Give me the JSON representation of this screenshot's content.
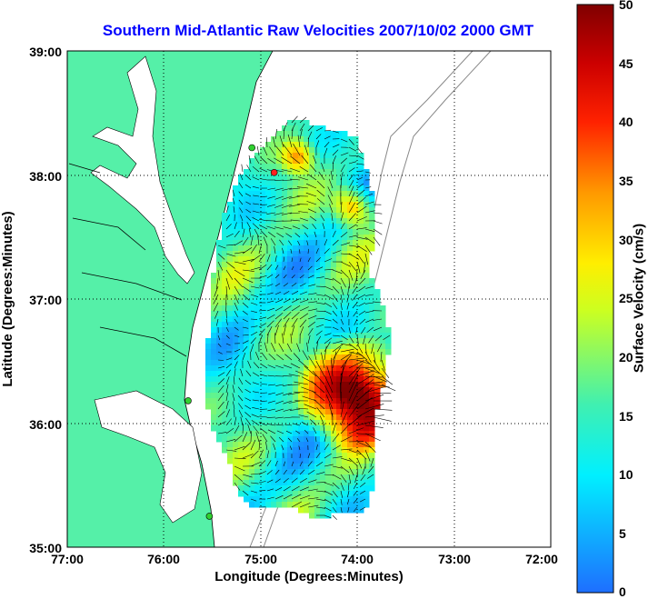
{
  "title": "Southern Mid-Atlantic Raw Velocities 2007/10/02 2000 GMT",
  "axes": {
    "xlabel": "Longitude (Degrees:Minutes)",
    "ylabel": "Latitude (Degrees:Minutes)",
    "x_ticks": [
      "77:00",
      "76:00",
      "75:00",
      "74:00",
      "73:00",
      "72:00"
    ],
    "y_ticks": [
      "39:00",
      "38:00",
      "37:00",
      "36:00",
      "35:00"
    ]
  },
  "colorbar": {
    "label": "Surface Velocity (cm/s)",
    "ticks": [
      "50",
      "45",
      "40",
      "35",
      "30",
      "25",
      "20",
      "15",
      "10",
      "5",
      "0"
    ],
    "range": [
      0,
      50
    ]
  },
  "colors": {
    "land": "#55f0a8",
    "water": "#ffffff",
    "title": "#0000ff",
    "slow": "#1e6fff",
    "fast": "#8b0000"
  },
  "map": {
    "lon_range": [
      -77,
      -72
    ],
    "lat_range": [
      35,
      39
    ],
    "grid": "dotted",
    "stations": [
      {
        "lat": 38.02,
        "lon": -74.86,
        "color": "#ff2020"
      },
      {
        "lat": 38.22,
        "lon": -75.09,
        "color": "#30d030"
      },
      {
        "lat": 36.18,
        "lon": -75.75,
        "color": "#30d030"
      },
      {
        "lat": 35.25,
        "lon": -75.53,
        "color": "#30d030"
      }
    ]
  }
}
